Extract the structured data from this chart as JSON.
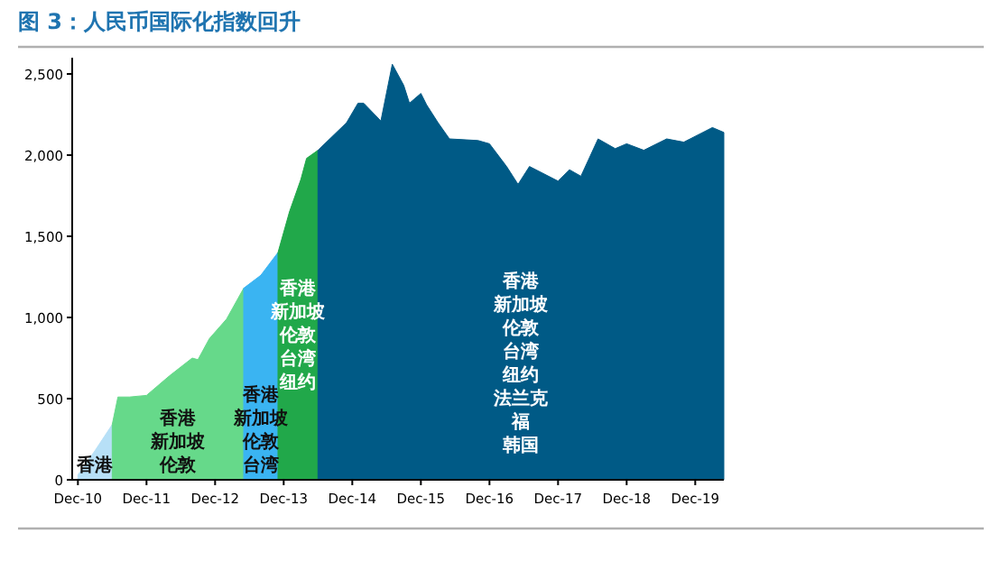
{
  "chart_data": {
    "type": "area",
    "title": "图 3：人民币国际化指数回升",
    "xlim": [
      "2010-11",
      "2020-05"
    ],
    "ylim": [
      0,
      2600
    ],
    "xticks": [
      {
        "value": "2010-12",
        "label": "Dec-10"
      },
      {
        "value": "2011-12",
        "label": "Dec-11"
      },
      {
        "value": "2012-12",
        "label": "Dec-12"
      },
      {
        "value": "2013-12",
        "label": "Dec-13"
      },
      {
        "value": "2014-12",
        "label": "Dec-14"
      },
      {
        "value": "2015-12",
        "label": "Dec-15"
      },
      {
        "value": "2016-12",
        "label": "Dec-16"
      },
      {
        "value": "2017-12",
        "label": "Dec-17"
      },
      {
        "value": "2018-12",
        "label": "Dec-18"
      },
      {
        "value": "2019-12",
        "label": "Dec-19"
      }
    ],
    "yticks": [
      {
        "value": 0,
        "label": "0"
      },
      {
        "value": 500,
        "label": "500"
      },
      {
        "value": 1000,
        "label": "1,000"
      },
      {
        "value": 1500,
        "label": "1,500"
      },
      {
        "value": 2000,
        "label": "2,000"
      },
      {
        "value": 2500,
        "label": "2,500"
      }
    ],
    "series": [
      {
        "name": "香港",
        "color": "#b7e0f7",
        "x": [
          "2010-12",
          "2011-03",
          "2011-06"
        ],
        "values": [
          30,
          180,
          340
        ]
      },
      {
        "name": "香港新加坡伦敦",
        "color": "#66d98a",
        "x": [
          "2011-06",
          "2011-07",
          "2011-09",
          "2011-12",
          "2012-04",
          "2012-08",
          "2012-09",
          "2012-11",
          "2013-02",
          "2013-05"
        ],
        "values": [
          340,
          510,
          510,
          520,
          640,
          750,
          740,
          870,
          990,
          1180
        ]
      },
      {
        "name": "香港新加坡伦敦台湾",
        "color": "#3ab4f2",
        "x": [
          "2013-05",
          "2013-08",
          "2013-11"
        ],
        "values": [
          1180,
          1260,
          1400
        ]
      },
      {
        "name": "香港新加坡伦敦台湾纽约",
        "color": "#21a84a",
        "x": [
          "2013-11",
          "2014-01",
          "2014-03",
          "2014-04",
          "2014-06"
        ],
        "values": [
          1400,
          1650,
          1850,
          1980,
          2030
        ]
      },
      {
        "name": "香港新加坡伦敦台湾纽约法兰克福韩国",
        "color": "#005a86",
        "x": [
          "2014-06",
          "2014-11",
          "2015-01",
          "2015-02",
          "2015-05",
          "2015-07",
          "2015-09",
          "2015-10",
          "2015-12",
          "2016-01",
          "2016-03",
          "2016-05",
          "2016-10",
          "2016-12",
          "2017-03",
          "2017-05",
          "2017-07",
          "2017-12",
          "2018-02",
          "2018-04",
          "2018-07",
          "2018-10",
          "2018-12",
          "2019-03",
          "2019-07",
          "2019-10",
          "2020-03",
          "2020-05"
        ],
        "values": [
          2030,
          2200,
          2320,
          2320,
          2210,
          2560,
          2430,
          2320,
          2380,
          2310,
          2200,
          2100,
          2090,
          2070,
          1930,
          1820,
          1930,
          1840,
          1910,
          1870,
          2100,
          2040,
          2070,
          2030,
          2100,
          2080,
          2170,
          2140
        ]
      }
    ]
  }
}
